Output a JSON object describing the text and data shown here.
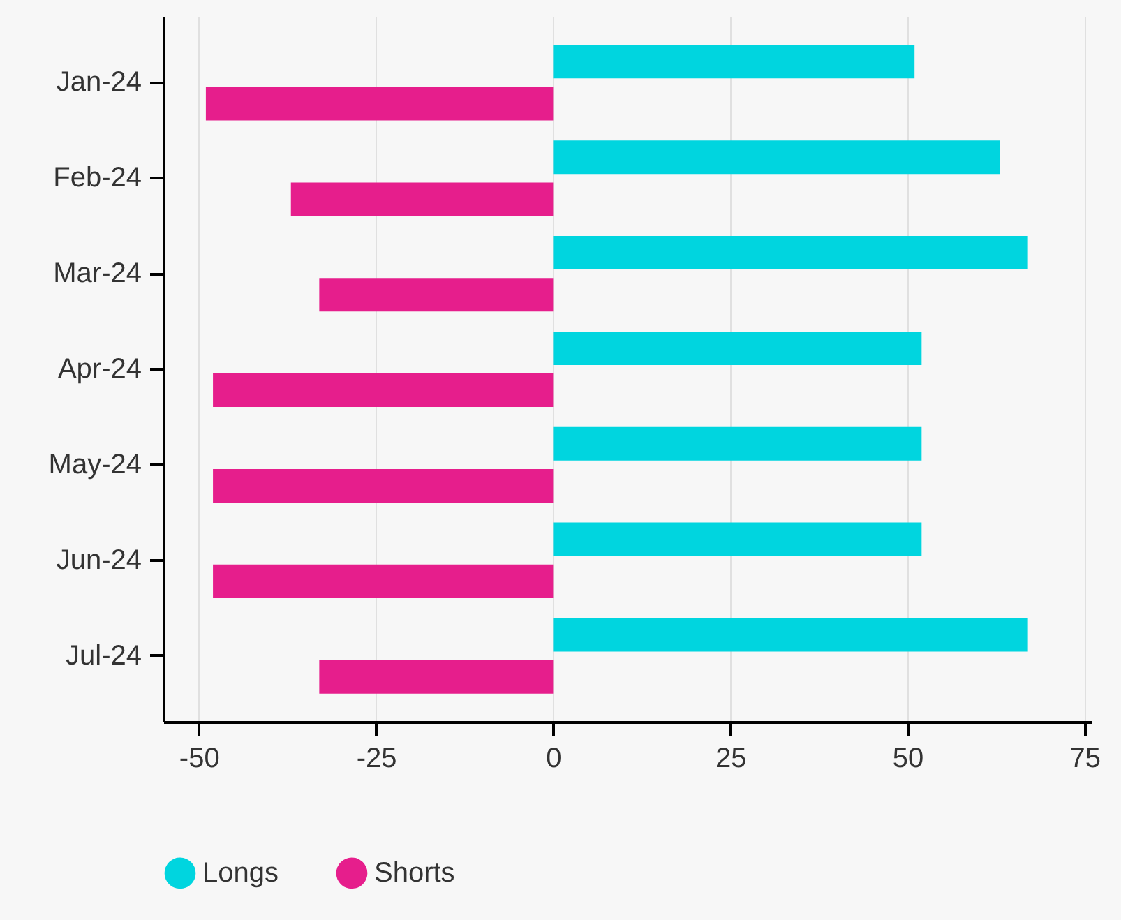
{
  "chart_data": {
    "type": "bar",
    "orientation": "horizontal",
    "categories": [
      "Jan-24",
      "Feb-24",
      "Mar-24",
      "Apr-24",
      "May-24",
      "Jun-24",
      "Jul-24"
    ],
    "series": [
      {
        "name": "Longs",
        "color": "#00d5df",
        "values": [
          51,
          63,
          67,
          52,
          52,
          52,
          67
        ]
      },
      {
        "name": "Shorts",
        "color": "#e61e8c",
        "values": [
          -49,
          -37,
          -33,
          -48,
          -48,
          -48,
          -33
        ]
      }
    ],
    "xlim": [
      -55,
      76
    ],
    "xticks": [
      -50,
      -25,
      0,
      25,
      50,
      75
    ],
    "grid": "x",
    "legend": "bottom"
  }
}
